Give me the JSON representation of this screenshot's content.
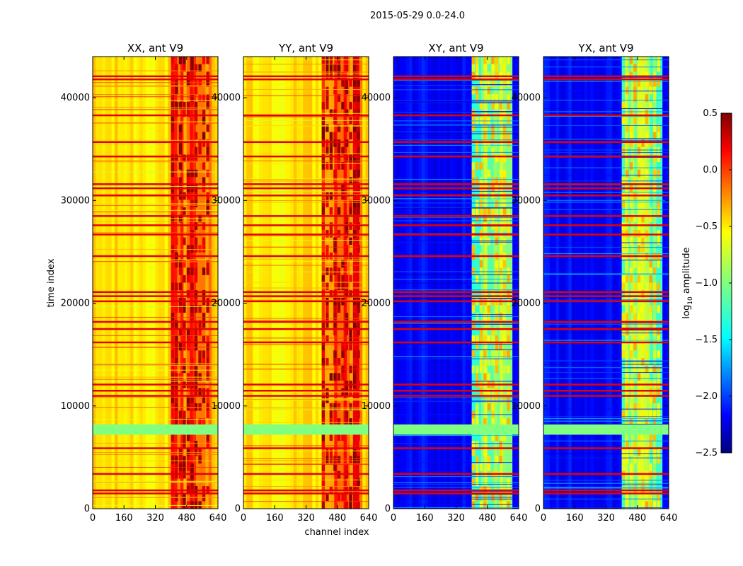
{
  "figure": {
    "suptitle": "2015-05-29 0.0-24.0",
    "xlabel": "channel index",
    "ylabel": "time index"
  },
  "colorbar": {
    "label_prefix": "log",
    "label_sub": "10",
    "label_suffix": " amplitude",
    "range": [
      -2.5,
      0.5
    ],
    "ticks": [
      "0.5",
      "0.0",
      "−0.5",
      "−1.0",
      "−1.5",
      "−2.0",
      "−2.5"
    ],
    "tick_values": [
      0.5,
      0.0,
      -0.5,
      -1.0,
      -1.5,
      -2.0,
      -2.5
    ],
    "colormap": "jet"
  },
  "chart_data": [
    {
      "type": "heatmap",
      "title": "XX, ant V9",
      "xlabel": "",
      "ylabel": "time index",
      "xlim": [
        0,
        640
      ],
      "ylim": [
        0,
        44000
      ],
      "xticks": [
        "0",
        "160",
        "320",
        "480",
        "640"
      ],
      "yticks": [
        "0",
        "10000",
        "20000",
        "30000",
        "40000"
      ],
      "background_level": -0.55,
      "band_channels": [
        400,
        600
      ],
      "band_level": -0.15,
      "flagged_rows_level": 0.2,
      "notes_free_levels": "yellow/orange base with darker red band at channels ~400-600"
    },
    {
      "type": "heatmap",
      "title": "YY, ant V9",
      "xlabel": "channel index",
      "ylabel": "",
      "xlim": [
        0,
        640
      ],
      "ylim": [
        0,
        44000
      ],
      "xticks": [
        "0",
        "160",
        "320",
        "480",
        "640"
      ],
      "yticks": [
        "0",
        "10000",
        "20000",
        "30000",
        "40000"
      ],
      "background_level": -0.55,
      "band_channels": [
        400,
        600
      ],
      "band_level": -0.1,
      "flagged_rows_level": 0.2
    },
    {
      "type": "heatmap",
      "title": "XY, ant V9",
      "xlabel": "",
      "ylabel": "",
      "xlim": [
        0,
        640
      ],
      "ylim": [
        0,
        44000
      ],
      "xticks": [
        "0",
        "160",
        "320",
        "480",
        "640"
      ],
      "yticks": [
        "0",
        "10000",
        "20000",
        "30000",
        "40000"
      ],
      "background_level": -2.1,
      "band_channels": [
        400,
        600
      ],
      "band_level": -1.0,
      "flagged_rows_level": 0.2
    },
    {
      "type": "heatmap",
      "title": "YX, ant V9",
      "xlabel": "",
      "ylabel": "",
      "xlim": [
        0,
        640
      ],
      "ylim": [
        0,
        44000
      ],
      "xticks": [
        "0",
        "160",
        "320",
        "480",
        "640"
      ],
      "yticks": [
        "0",
        "10000",
        "20000",
        "30000",
        "40000"
      ],
      "background_level": -2.1,
      "band_channels": [
        400,
        600
      ],
      "band_level": -1.0,
      "flagged_rows_level": 0.2
    }
  ],
  "flagged_time_rows": [
    1500,
    1800,
    3400,
    5900,
    7800,
    11000,
    11500,
    12100,
    16200,
    17500,
    18200,
    20200,
    20700,
    21100,
    24600,
    26700,
    27600,
    28500,
    30500,
    31200,
    31600,
    34300,
    35700,
    38300,
    41800,
    42100
  ]
}
